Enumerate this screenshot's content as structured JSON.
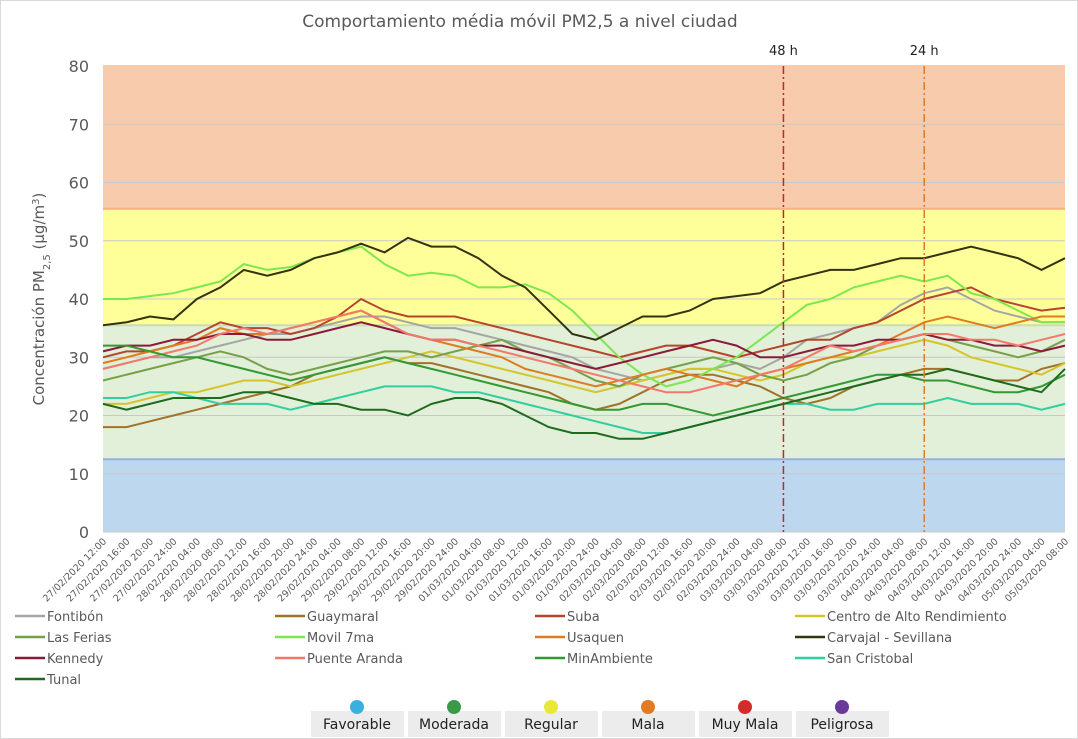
{
  "chart_data": {
    "type": "line",
    "title": "Comportamiento média móvil PM2,5 a nivel ciudad",
    "y_label_parts": [
      "Concentración PM",
      "2,5",
      " (µg/m",
      "3",
      ")"
    ],
    "ylim": [
      0,
      80
    ],
    "yticks": [
      0,
      10,
      20,
      30,
      40,
      50,
      60,
      70,
      80
    ],
    "grid": true,
    "bands": [
      {
        "from": 0,
        "to": 12.5,
        "color": "#bdd7ee",
        "edge": "#8fb4de"
      },
      {
        "from": 12.5,
        "to": 35.5,
        "color": "#e2efd9",
        "edge": "#c9dcb8"
      },
      {
        "from": 35.5,
        "to": 55.5,
        "color": "#ffff99",
        "edge": "#f4b183"
      },
      {
        "from": 55.5,
        "to": 80,
        "color": "#f8cbad",
        "edge": "#f8cbad"
      }
    ],
    "markers": [
      {
        "label": "48 h",
        "at": "03/03/2020 08:00",
        "color": "#c0272d"
      },
      {
        "label": "24 h",
        "at": "04/03/2020 08:00",
        "color": "#e07b22"
      }
    ],
    "categories": [
      "27/02/2020 12:00",
      "27/02/2020 16:00",
      "27/02/2020 20:00",
      "27/02/2020 24:00",
      "28/02/2020 04:00",
      "28/02/2020 08:00",
      "28/02/2020 12:00",
      "28/02/2020 16:00",
      "28/02/2020 20:00",
      "28/02/2020 24:00",
      "29/02/2020 04:00",
      "29/02/2020 08:00",
      "29/02/2020 12:00",
      "29/02/2020 16:00",
      "29/02/2020 20:00",
      "29/02/2020 24:00",
      "01/03/2020 04:00",
      "01/03/2020 08:00",
      "01/03/2020 12:00",
      "01/03/2020 16:00",
      "01/03/2020 20:00",
      "01/03/2020 24:00",
      "02/03/2020 04:00",
      "02/03/2020 08:00",
      "02/03/2020 12:00",
      "02/03/2020 16:00",
      "02/03/2020 20:00",
      "02/03/2020 24:00",
      "03/03/2020 04:00",
      "03/03/2020 08:00",
      "03/03/2020 12:00",
      "03/03/2020 16:00",
      "03/03/2020 20:00",
      "03/03/2020 24:00",
      "04/03/2020 04:00",
      "04/03/2020 08:00",
      "04/03/2020 12:00",
      "04/03/2020 16:00",
      "04/03/2020 20:00",
      "04/03/2020 24:00",
      "05/03/2020 04:00",
      "05/03/2020 08:00"
    ],
    "series": [
      {
        "name": "Fontibón",
        "color": "#a5a5a5",
        "values": [
          28,
          29,
          30,
          30,
          31,
          32,
          33,
          34,
          34,
          35,
          36,
          37,
          37,
          36,
          35,
          35,
          34,
          33,
          32,
          31,
          30,
          28,
          27,
          26,
          27,
          28,
          28,
          29,
          28,
          30,
          33,
          34,
          35,
          36,
          39,
          41,
          42,
          40,
          38,
          37,
          36,
          36
        ]
      },
      {
        "name": "Guaymaral",
        "color": "#a0722a",
        "values": [
          18,
          18,
          19,
          20,
          21,
          22,
          23,
          24,
          25,
          27,
          28,
          29,
          30,
          29,
          29,
          28,
          27,
          26,
          25,
          24,
          22,
          21,
          22,
          24,
          26,
          27,
          27,
          26,
          25,
          23,
          22,
          23,
          25,
          26,
          27,
          28,
          28,
          27,
          26,
          26,
          28,
          29
        ]
      },
      {
        "name": "Suba",
        "color": "#b5452d",
        "values": [
          30,
          31,
          31,
          32,
          34,
          36,
          35,
          35,
          34,
          35,
          37,
          40,
          38,
          37,
          37,
          37,
          36,
          35,
          34,
          33,
          32,
          31,
          30,
          31,
          32,
          32,
          31,
          30,
          31,
          32,
          33,
          33,
          35,
          36,
          38,
          40,
          41,
          42,
          40,
          39,
          38,
          38.5
        ]
      },
      {
        "name": "Centro de Alto Rendimiento",
        "color": "#d6c52a",
        "values": [
          22,
          22,
          23,
          24,
          24,
          25,
          26,
          26,
          25,
          26,
          27,
          28,
          29,
          30,
          31,
          30,
          29,
          28,
          27,
          26,
          25,
          24,
          25,
          26,
          27,
          28,
          28,
          27,
          26,
          27,
          29,
          30,
          30,
          31,
          32,
          33,
          32,
          30,
          29,
          28,
          27,
          29
        ]
      },
      {
        "name": "Las Ferias",
        "color": "#77a04a",
        "values": [
          26,
          27,
          28,
          29,
          30,
          31,
          30,
          28,
          27,
          28,
          29,
          30,
          31,
          31,
          30,
          31,
          32,
          33,
          31,
          30,
          28,
          26,
          25,
          27,
          28,
          29,
          30,
          29,
          27,
          26,
          27,
          29,
          30,
          32,
          33,
          34,
          33,
          32,
          31,
          30,
          31,
          33
        ]
      },
      {
        "name": "Movil 7ma",
        "color": "#7ce84f",
        "values": [
          40,
          40,
          40.5,
          41,
          42,
          43,
          46,
          45,
          45.5,
          47,
          48,
          49,
          46,
          44,
          44.5,
          44,
          42,
          42,
          42.5,
          41,
          38,
          34,
          30,
          27,
          25,
          26,
          28,
          30,
          33,
          36,
          39,
          40,
          42,
          43,
          44,
          43,
          44,
          41,
          40,
          38,
          36,
          36
        ]
      },
      {
        "name": "Usaquen",
        "color": "#e07b22",
        "values": [
          29,
          30,
          31,
          32,
          33,
          35,
          34,
          34,
          35,
          36,
          37,
          38,
          36,
          34,
          33,
          32,
          31,
          30,
          28,
          27,
          26,
          25,
          26,
          27,
          28,
          27,
          26,
          25,
          27,
          28,
          29,
          30,
          31,
          32,
          34,
          36,
          37,
          36,
          35,
          36,
          37,
          37
        ]
      },
      {
        "name": "Carvajal - Sevillana",
        "color": "#33330f",
        "values": [
          35.5,
          36,
          37,
          36.5,
          40,
          42,
          45,
          44,
          45,
          47,
          48,
          49.5,
          48,
          50.5,
          49,
          49,
          47,
          44,
          42,
          38,
          34,
          33,
          35,
          37,
          37,
          38,
          40,
          40.5,
          41,
          43,
          44,
          45,
          45,
          46,
          47,
          47,
          48,
          49,
          48,
          47,
          45,
          47
        ]
      },
      {
        "name": "Kennedy",
        "color": "#8b1a3a",
        "values": [
          31,
          32,
          32,
          33,
          33,
          34,
          34,
          33,
          33,
          34,
          35,
          36,
          35,
          34,
          33,
          33,
          32,
          32,
          31,
          30,
          29,
          28,
          29,
          30,
          31,
          32,
          33,
          32,
          30,
          30,
          31,
          32,
          32,
          33,
          33,
          34,
          33,
          33,
          32,
          32,
          31,
          32
        ]
      },
      {
        "name": "Puente Aranda",
        "color": "#f4786c",
        "values": [
          28,
          29,
          30,
          31,
          32,
          34,
          35,
          34,
          35,
          36,
          37,
          38,
          36,
          34,
          33,
          33,
          32,
          31,
          30,
          29,
          28,
          27,
          26,
          25,
          24,
          24,
          25,
          26,
          27,
          28,
          30,
          32,
          31,
          32,
          33,
          34,
          34,
          33,
          33,
          32,
          33,
          34
        ]
      },
      {
        "name": "MinAmbiente",
        "color": "#339933",
        "values": [
          32,
          32,
          31,
          30,
          30,
          29,
          28,
          27,
          26,
          27,
          28,
          29,
          30,
          29,
          28,
          27,
          26,
          25,
          24,
          23,
          22,
          21,
          21,
          22,
          22,
          21,
          20,
          21,
          22,
          23,
          24,
          25,
          26,
          27,
          27,
          26,
          26,
          25,
          24,
          24,
          25,
          27
        ]
      },
      {
        "name": "San Cristobal",
        "color": "#2fcf9f",
        "values": [
          23,
          23,
          24,
          24,
          23,
          22,
          22,
          22,
          21,
          22,
          23,
          24,
          25,
          25,
          25,
          24,
          24,
          23,
          22,
          21,
          20,
          19,
          18,
          17,
          17,
          18,
          19,
          20,
          21,
          22,
          22,
          21,
          21,
          22,
          22,
          22,
          23,
          22,
          22,
          22,
          21,
          22
        ]
      },
      {
        "name": "Tunal",
        "color": "#1e6b1e",
        "values": [
          22,
          21,
          22,
          23,
          23,
          23,
          24,
          24,
          23,
          22,
          22,
          21,
          21,
          20,
          22,
          23,
          23,
          22,
          20,
          18,
          17,
          17,
          16,
          16,
          17,
          18,
          19,
          20,
          21,
          22,
          23,
          24,
          25,
          26,
          27,
          27,
          28,
          27,
          26,
          25,
          24,
          28
        ]
      }
    ],
    "quality_legend": [
      {
        "label": "Favorable",
        "color": "#3bb0e0"
      },
      {
        "label": "Moderada",
        "color": "#3a9a48"
      },
      {
        "label": "Regular",
        "color": "#e8e83a"
      },
      {
        "label": "Mala",
        "color": "#e07b22"
      },
      {
        "label": "Muy Mala",
        "color": "#d62b2b"
      },
      {
        "label": "Peligrosa",
        "color": "#6a3a9a"
      }
    ]
  }
}
